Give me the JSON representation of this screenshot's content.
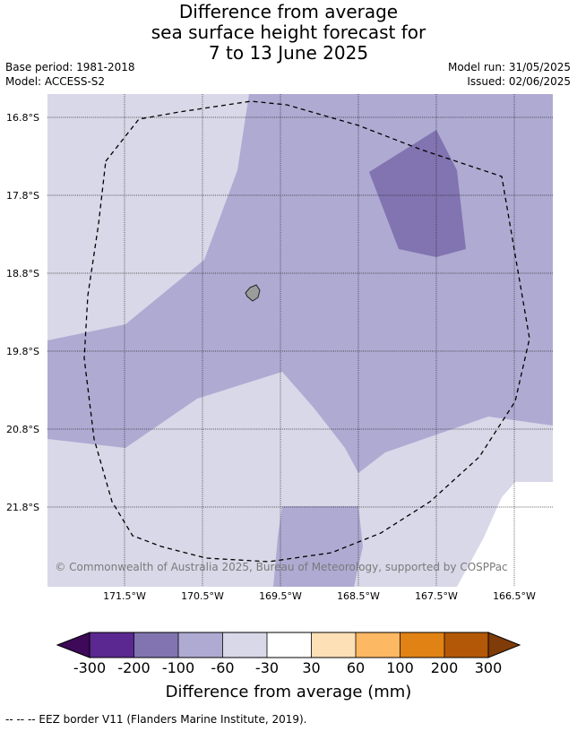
{
  "title": {
    "line1": "Difference from average",
    "line2": "sea surface height forecast for",
    "line3": "7 to 13 June 2025"
  },
  "meta": {
    "base_period": "Base period: 1981-2018",
    "model": "Model: ACCESS-S2",
    "model_run": "Model run: 31/05/2025",
    "issued": "Issued: 02/06/2025"
  },
  "map": {
    "lat_labels": [
      "16.8°S",
      "17.8°S",
      "18.8°S",
      "19.8°S",
      "20.8°S",
      "21.8°S"
    ],
    "lon_labels": [
      "171.5°W",
      "170.5°W",
      "169.5°W",
      "168.5°W",
      "167.5°W",
      "166.5°W"
    ],
    "copyright": "© Commonwealth of Australia 2025, Bureau of Meteorology, supported by COSPPac",
    "fill_colors": {
      "minus_30_to_minus_60": "#d8d8e8",
      "minus_60_to_minus_100": "#aeaad2",
      "minus_100_to_minus_200": "#8174b0",
      "land": "#9b9b9b"
    }
  },
  "colorbar": {
    "tick_labels": [
      "-300",
      "-200",
      "-100",
      "-60",
      "-30",
      "30",
      "60",
      "100",
      "200",
      "300"
    ],
    "colors": [
      "#3d0958",
      "#5b2790",
      "#8174b0",
      "#aeaad2",
      "#d8d8e8",
      "#ffffff",
      "#fee0b6",
      "#fdb863",
      "#e08214",
      "#b35806",
      "#7f3b08"
    ],
    "label": "Difference from average (mm)"
  },
  "footnote": "--  --  -- EEZ border V11 (Flanders Marine Institute, 2019)."
}
